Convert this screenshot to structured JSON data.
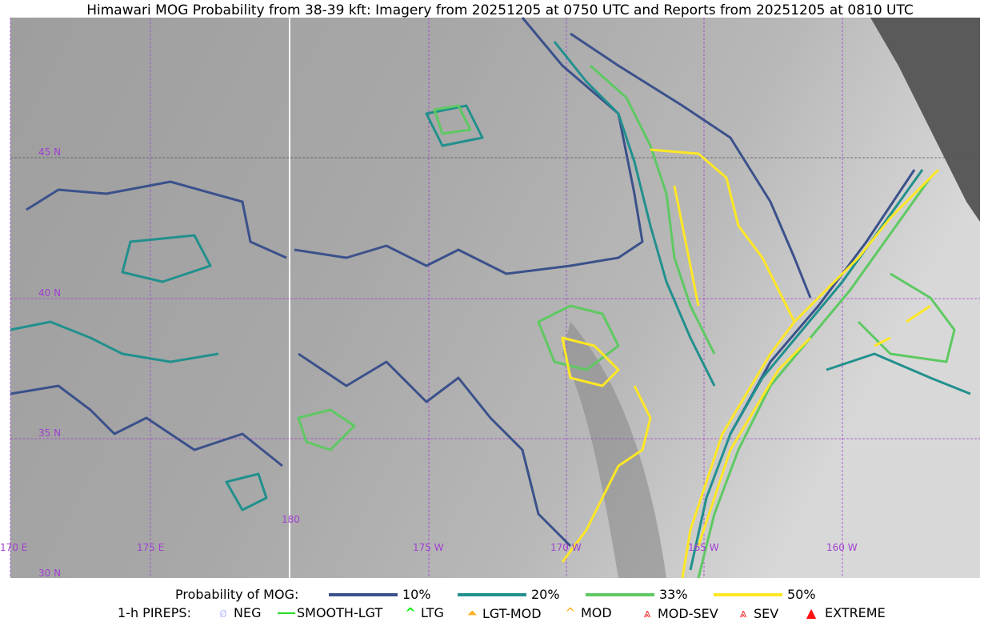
{
  "title": "Himawari MOG Probability from 38-39 kft: Imagery from 20251205 at 0750 UTC and Reports from 20251205 at 0810 UTC",
  "map": {
    "lat_labels": [
      "45 N",
      "40 N",
      "35 N",
      "30 N"
    ],
    "lon_labels": [
      "170 E",
      "175 E",
      "180",
      "175 W",
      "170 W",
      "165 W",
      "160 W"
    ],
    "grid_color": "#a040d0",
    "contour_colors": {
      "p10": "#3b518b",
      "p20": "#21908d",
      "p33": "#5ec962",
      "p50": "#fde725"
    }
  },
  "legend": {
    "prob_title": "Probability of MOG:",
    "prob_items": [
      {
        "label": "10%",
        "color": "#3b518b"
      },
      {
        "label": "20%",
        "color": "#21908d"
      },
      {
        "label": "33%",
        "color": "#5ec962"
      },
      {
        "label": "50%",
        "color": "#fde725"
      }
    ],
    "pirep_title": "1-h PIREPS:",
    "pirep_items": [
      {
        "label": "NEG",
        "icon": "neg-icon",
        "color": "#c8c8ff"
      },
      {
        "label": "SMOOTH-LGT",
        "icon": "smooth-lgt-line-icon",
        "color": "#22dd22"
      },
      {
        "label": "LTG",
        "icon": "ltg-caret-icon",
        "color": "#00ee00"
      },
      {
        "label": "LGT-MOD",
        "icon": "lgt-mod-icon",
        "color": "#ffb020"
      },
      {
        "label": "MOD",
        "icon": "mod-icon",
        "color": "#ffb020"
      },
      {
        "label": "MOD-SEV",
        "icon": "mod-sev-icon",
        "color": "#ff3030"
      },
      {
        "label": "SEV",
        "icon": "sev-icon",
        "color": "#ff3030"
      },
      {
        "label": "EXTREME",
        "icon": "extreme-icon",
        "color": "#ff1010"
      }
    ]
  }
}
